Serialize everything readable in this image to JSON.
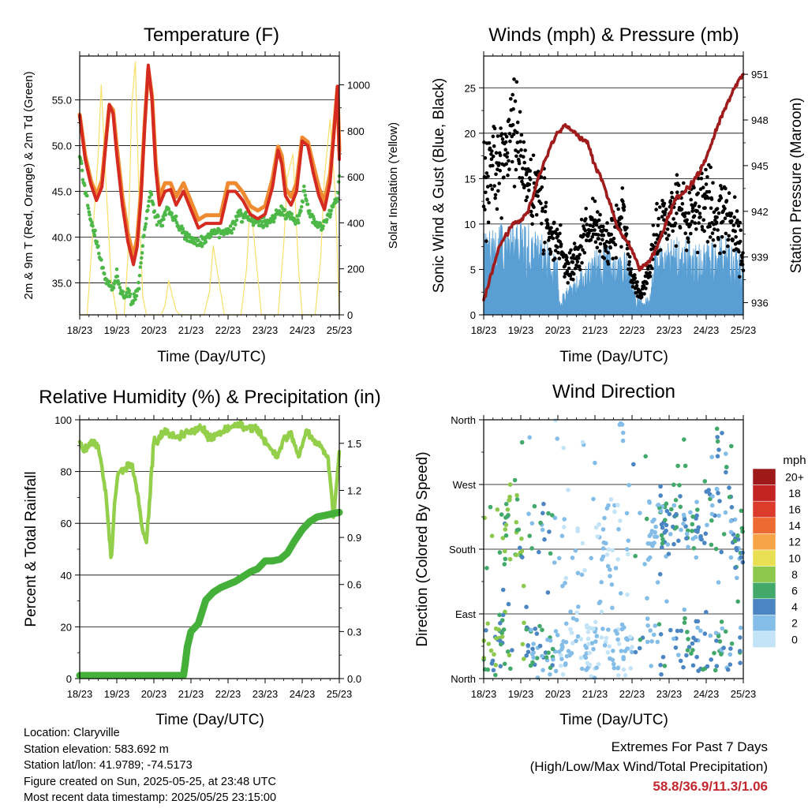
{
  "panels": {
    "temperature": {
      "title": "Temperature (F)",
      "xlabel": "Time (Day/UTC)",
      "ylabel_left": "2m & 9m T (Red, Orange) & 2m Td (Green)",
      "ylabel_right": "Solar Insolation (Yellow)"
    },
    "winds": {
      "title": "Winds (mph) & Pressure (mb)",
      "xlabel": "Time (Day/UTC)",
      "ylabel_left": "Sonic Wind & Gust (Blue, Black)",
      "ylabel_right": "Station Pressure (Maroon)"
    },
    "humidity": {
      "title": "Relative Humidity (%) & Precipitation (in)",
      "xlabel": "Time (Day/UTC)",
      "ylabel_left": "Percent & Total Rainfall"
    },
    "direction": {
      "title": "Wind Direction",
      "xlabel": "Time (Day/UTC)",
      "ylabel_left": "Direction (Colored By Speed)",
      "legend_title": "mph"
    }
  },
  "info": {
    "location": "Location: Claryville",
    "elevation": "Station elevation: 583.692 m",
    "latlon": "Station lat/lon: 41.9789; -74.5173",
    "created": "Figure created on Sun, 2025-05-25, at 23:48 UTC",
    "recent": "Most recent data timestamp: 2025/05/25 23:15:00"
  },
  "extremes": {
    "line1": "Extremes For Past 7 Days",
    "line2": "(High/Low/Max Wind/Total Precipitation)",
    "values": "58.8/36.9/11.3/1.06"
  },
  "colors": {
    "temp_2m": "#d42a20",
    "temp_9m": "#f08a30",
    "dewpoint": "#4db848",
    "solar": "#f7e06a",
    "wind_speed": "#5a9fd4",
    "gust": "#000000",
    "pressure": "#a01b1b",
    "rh": "#93cf4a",
    "precip": "#44b03a"
  },
  "chart_data": [
    {
      "type": "line",
      "name": "temperature",
      "x_ticks": [
        "18/23",
        "19/23",
        "20/23",
        "21/23",
        "22/23",
        "23/23",
        "24/23",
        "25/23"
      ],
      "xlim": [
        0,
        7
      ],
      "ylim": [
        31.5,
        59.8
      ],
      "y_ticks": [
        "35.0",
        "40.0",
        "45.0",
        "50.0",
        "55.0"
      ],
      "y_tick_values": [
        35,
        40,
        45,
        50,
        55
      ],
      "y2lim": [
        0,
        1125
      ],
      "y2_ticks": [
        0,
        200,
        400,
        600,
        800,
        1000
      ],
      "grid": "horizontal",
      "series": [
        {
          "axis": "right",
          "x": [
            0,
            0.2,
            0.35,
            0.5,
            0.58,
            0.7,
            0.85,
            1.0,
            1.1,
            1.2,
            1.3,
            1.4,
            1.5,
            1.6,
            1.7,
            1.8,
            1.9,
            2.0,
            2.1,
            2.2,
            2.3,
            2.4,
            2.5,
            2.6,
            2.7,
            2.8,
            2.9,
            3.0,
            3.2,
            3.35,
            3.5,
            3.6,
            3.75,
            3.9,
            4.0,
            4.2,
            4.35,
            4.5,
            4.6,
            4.75,
            4.9,
            5.0,
            5.2,
            5.35,
            5.5,
            5.6,
            5.75,
            5.9,
            6.0,
            6.2,
            6.35,
            6.5,
            6.6,
            6.75,
            6.9,
            7.0
          ],
          "values": [
            0,
            0,
            350,
            700,
            1000,
            600,
            150,
            0,
            0,
            0,
            250,
            900,
            1100,
            500,
            80,
            0,
            0,
            0,
            0,
            0,
            40,
            150,
            80,
            20,
            0,
            0,
            0,
            0,
            0,
            0,
            100,
            300,
            150,
            0,
            0,
            0,
            0,
            200,
            500,
            250,
            0,
            0,
            0,
            0,
            300,
            600,
            700,
            200,
            0,
            0,
            0,
            250,
            600,
            850,
            500,
            0
          ]
        },
        {
          "axis": "left",
          "x": [
            0,
            0.15,
            0.3,
            0.45,
            0.6,
            0.7,
            0.8,
            0.9,
            1.0,
            1.15,
            1.3,
            1.45,
            1.55,
            1.65,
            1.75,
            1.85,
            1.95,
            2.05,
            2.15,
            2.3,
            2.45,
            2.6,
            2.8,
            3.0,
            3.2,
            3.4,
            3.6,
            3.8,
            4.0,
            4.2,
            4.4,
            4.6,
            4.8,
            5.0,
            5.2,
            5.35,
            5.45,
            5.55,
            5.7,
            5.85,
            6.0,
            6.15,
            6.3,
            6.45,
            6.6,
            6.75,
            6.85,
            6.95,
            7.0
          ],
          "values": [
            53.3,
            48.5,
            45.8,
            44.0,
            45.5,
            50.0,
            54.5,
            53.5,
            49.0,
            43.5,
            39.5,
            37.0,
            39.0,
            44.0,
            52.0,
            58.8,
            55.0,
            47.5,
            43.5,
            45.0,
            45.2,
            43.5,
            45.0,
            43.0,
            41.0,
            41.5,
            41.5,
            41.5,
            45.0,
            45.0,
            44.0,
            42.5,
            42.0,
            42.5,
            45.5,
            49.5,
            48.0,
            44.5,
            43.5,
            45.0,
            50.5,
            50.0,
            47.0,
            44.5,
            43.0,
            46.0,
            51.0,
            56.5,
            48.5
          ]
        },
        {
          "axis": "left",
          "x": [
            0,
            0.15,
            0.3,
            0.45,
            0.6,
            0.7,
            0.8,
            0.9,
            1.0,
            1.15,
            1.3,
            1.45,
            1.55,
            1.65,
            1.75,
            1.85,
            1.95,
            2.05,
            2.15,
            2.3,
            2.45,
            2.6,
            2.8,
            3.0,
            3.2,
            3.4,
            3.6,
            3.8,
            4.0,
            4.2,
            4.4,
            4.6,
            4.8,
            5.0,
            5.2,
            5.35,
            5.45,
            5.55,
            5.7,
            5.85,
            6.0,
            6.15,
            6.3,
            6.45,
            6.6,
            6.75,
            6.85,
            6.95,
            7.0
          ],
          "values": [
            53.0,
            48.5,
            45.8,
            44.2,
            45.8,
            50.0,
            54.0,
            53.5,
            49.5,
            44.0,
            40.0,
            37.5,
            39.5,
            44.5,
            52.0,
            58.0,
            55.0,
            47.8,
            44.0,
            45.5,
            45.5,
            44.0,
            45.5,
            43.5,
            41.5,
            42.0,
            42.0,
            42.0,
            45.5,
            45.5,
            44.5,
            43.0,
            42.5,
            43.0,
            46.0,
            49.5,
            48.5,
            45.0,
            44.0,
            45.5,
            50.5,
            50.0,
            47.5,
            45.0,
            43.5,
            46.5,
            51.0,
            56.0,
            49.0
          ]
        },
        {
          "axis": "left",
          "x": [
            0,
            0.15,
            0.3,
            0.45,
            0.6,
            0.75,
            0.9,
            1.0,
            1.1,
            1.2,
            1.3,
            1.4,
            1.5,
            1.6,
            1.75,
            1.9,
            2.05,
            2.2,
            2.35,
            2.5,
            2.7,
            2.9,
            3.1,
            3.3,
            3.5,
            3.7,
            3.9,
            4.1,
            4.3,
            4.5,
            4.7,
            4.9,
            5.1,
            5.3,
            5.45,
            5.6,
            5.75,
            5.9,
            6.05,
            6.2,
            6.35,
            6.5,
            6.65,
            6.8,
            6.95,
            7.0
          ],
          "values": [
            49.0,
            45.0,
            42.0,
            39.5,
            37.0,
            35.0,
            34.5,
            36.0,
            34.0,
            33.5,
            34.0,
            33.0,
            33.5,
            35.0,
            40.5,
            45.0,
            42.0,
            41.5,
            43.0,
            42.5,
            41.0,
            40.0,
            39.5,
            39.5,
            40.0,
            40.5,
            40.5,
            41.0,
            42.5,
            42.0,
            42.0,
            41.5,
            41.5,
            42.5,
            43.0,
            42.5,
            42.0,
            42.0,
            45.0,
            42.5,
            41.5,
            41.0,
            42.0,
            43.0,
            44.5,
            46.5
          ]
        }
      ]
    },
    {
      "type": "scatter",
      "name": "winds",
      "x_ticks": [
        "18/23",
        "19/23",
        "20/23",
        "21/23",
        "22/23",
        "23/23",
        "24/23",
        "25/23"
      ],
      "xlim": [
        0,
        7
      ],
      "ylim": [
        0,
        28.5
      ],
      "y_ticks": [
        0,
        5,
        10,
        15,
        20,
        25
      ],
      "y2lim": [
        935.2,
        952.2
      ],
      "y2_ticks": [
        936,
        939,
        942,
        945,
        948,
        951
      ],
      "grid": "horizontal",
      "series": [
        {
          "type": "area",
          "x": [
            0,
            0.5,
            1.0,
            1.5,
            2.0,
            2.05,
            2.5,
            2.8,
            3.0,
            3.3,
            3.6,
            3.9,
            4.0,
            4.3,
            4.5,
            4.6,
            5.0,
            5.5,
            6.0,
            6.5,
            7.0
          ],
          "values": [
            5.0,
            5.5,
            6.0,
            5.0,
            3.5,
            1.0,
            2.5,
            3.0,
            4.0,
            4.5,
            3.5,
            4.0,
            2.0,
            0.8,
            1.5,
            4.0,
            4.5,
            5.0,
            4.5,
            5.0,
            3.5
          ]
        },
        {
          "type": "scatter",
          "x": [
            0,
            0.25,
            0.5,
            0.75,
            1.0,
            1.25,
            1.5,
            1.75,
            2.0,
            2.25,
            2.5,
            2.75,
            3.0,
            3.25,
            3.5,
            3.75,
            4.0,
            4.25,
            4.5,
            4.75,
            5.0,
            5.25,
            5.5,
            5.75,
            6.0,
            6.25,
            6.5,
            6.75,
            7.0
          ],
          "values": [
            14,
            15,
            17,
            22,
            16,
            14,
            13,
            10,
            8,
            5,
            6,
            9,
            10,
            8,
            9,
            11,
            4,
            2,
            6,
            11,
            10,
            12,
            10,
            12,
            13,
            10,
            11,
            10,
            6
          ]
        },
        {
          "type": "line",
          "x": [
            0,
            0.2,
            0.4,
            0.6,
            0.8,
            1.0,
            1.2,
            1.4,
            1.6,
            1.8,
            2.0,
            2.2,
            2.4,
            2.6,
            2.8,
            3.0,
            3.2,
            3.4,
            3.6,
            3.8,
            4.0,
            4.2,
            4.4,
            4.6,
            4.8,
            5.0,
            5.2,
            5.4,
            5.6,
            5.8,
            6.0,
            6.2,
            6.4,
            6.6,
            6.8,
            7.0
          ],
          "values": [
            936.2,
            937.8,
            939.5,
            940.5,
            941.2,
            941.4,
            942.0,
            943.5,
            945.0,
            946.3,
            947.2,
            947.6,
            947.3,
            946.8,
            946.5,
            945.0,
            944.0,
            942.5,
            941.0,
            940.2,
            939.5,
            938.2,
            938.6,
            939.2,
            940.5,
            941.8,
            942.8,
            943.2,
            943.8,
            944.5,
            945.5,
            946.8,
            948.2,
            949.2,
            950.3,
            951.0
          ]
        }
      ]
    },
    {
      "type": "line",
      "name": "humidity",
      "x_ticks": [
        "18/23",
        "19/23",
        "20/23",
        "21/23",
        "22/23",
        "23/23",
        "24/23",
        "25/23"
      ],
      "xlim": [
        0,
        7
      ],
      "ylim": [
        0,
        100
      ],
      "y_ticks": [
        0,
        20,
        40,
        60,
        80,
        100
      ],
      "y2lim": [
        0,
        1.65
      ],
      "y2_ticks": [
        "0.0",
        "0.3",
        "0.6",
        "0.9",
        "1.2",
        "1.5"
      ],
      "y2_tick_values": [
        0,
        0.3,
        0.6,
        0.9,
        1.2,
        1.5
      ],
      "grid": "horizontal",
      "series": [
        {
          "axis": "left",
          "x": [
            0,
            0.1,
            0.3,
            0.5,
            0.7,
            0.85,
            0.95,
            1.05,
            1.2,
            1.4,
            1.55,
            1.7,
            1.8,
            1.9,
            2.0,
            2.1,
            2.2,
            2.3,
            2.5,
            2.7,
            2.9,
            3.1,
            3.3,
            3.5,
            3.7,
            3.9,
            4.1,
            4.3,
            4.5,
            4.7,
            4.9,
            5.1,
            5.3,
            5.5,
            5.7,
            5.9,
            6.1,
            6.3,
            6.5,
            6.7,
            6.85,
            7.0
          ],
          "values": [
            92,
            88,
            91,
            90,
            72,
            46,
            70,
            80,
            81,
            83,
            72,
            57,
            53,
            72,
            92,
            91,
            94,
            96,
            93,
            94,
            95,
            96,
            97,
            93,
            95,
            96,
            97,
            98,
            97,
            97,
            94,
            90,
            85,
            92,
            95,
            85,
            95,
            92,
            90,
            85,
            62,
            88
          ]
        },
        {
          "axis": "right",
          "x": [
            0,
            1.0,
            2.0,
            2.8,
            2.85,
            2.9,
            3.0,
            3.2,
            3.4,
            3.6,
            3.8,
            4.0,
            4.2,
            4.4,
            4.6,
            4.8,
            5.0,
            5.2,
            5.4,
            5.6,
            5.8,
            6.0,
            6.2,
            6.4,
            6.6,
            6.8,
            7.0
          ],
          "values": [
            0.02,
            0.02,
            0.02,
            0.02,
            0.1,
            0.2,
            0.3,
            0.35,
            0.5,
            0.55,
            0.58,
            0.6,
            0.62,
            0.65,
            0.68,
            0.7,
            0.75,
            0.75,
            0.76,
            0.8,
            0.88,
            0.95,
            1.0,
            1.03,
            1.04,
            1.05,
            1.06
          ]
        }
      ]
    },
    {
      "type": "scatter",
      "name": "wind_direction",
      "x_ticks": [
        "18/23",
        "19/23",
        "20/23",
        "21/23",
        "22/23",
        "23/23",
        "24/23",
        "25/23"
      ],
      "xlim": [
        0,
        7
      ],
      "ylim": [
        0,
        360
      ],
      "y_ticks": [
        "North",
        "East",
        "South",
        "West",
        "North"
      ],
      "y_tick_values": [
        0,
        90,
        180,
        270,
        360
      ],
      "grid": "horizontal",
      "legend": {
        "title": "mph",
        "labels": [
          "20+",
          "18",
          "16",
          "14",
          "12",
          "10",
          "8",
          "6",
          "4",
          "2",
          "0"
        ],
        "colors": [
          "#9e1a1a",
          "#c42323",
          "#dc3a2a",
          "#ee6a33",
          "#f6a447",
          "#e8e052",
          "#8cc84b",
          "#43a96a",
          "#4b86c3",
          "#84bde8",
          "#c3e4f7"
        ]
      },
      "series": [
        {
          "name": "direction_by_speed",
          "x": [
            0.1,
            0.3,
            0.5,
            0.6,
            0.8,
            1.2,
            1.5,
            1.8,
            2.2,
            2.5,
            2.9,
            3.3,
            3.6,
            3.9,
            4.4,
            4.8,
            5.2,
            5.6,
            6.0,
            6.4,
            6.8
          ],
          "values": [
            30,
            40,
            50,
            210,
            300,
            40,
            35,
            45,
            30,
            80,
            20,
            200,
            30,
            25,
            190,
            210,
            230,
            200,
            210,
            320,
            180
          ]
        }
      ]
    }
  ]
}
